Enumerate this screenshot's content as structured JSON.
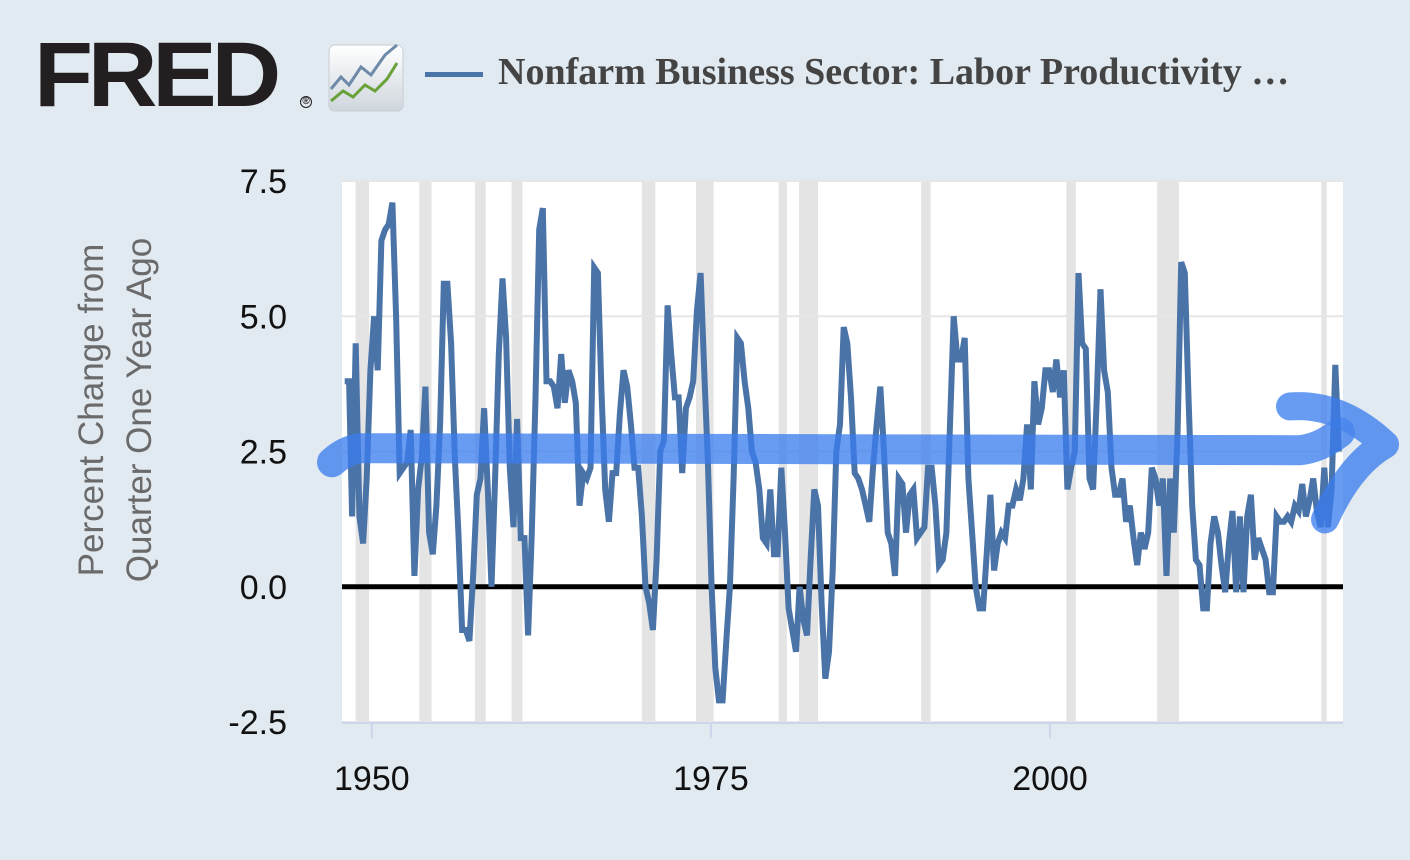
{
  "header": {
    "logo_text": "FRED",
    "logo_registered": "®",
    "logo_icon": "fred-chart-icon",
    "legend_label": "Nonfarm Business Sector: Labor Productivity …",
    "legend_color": "#4a73a8"
  },
  "colors": {
    "background": "#e1e9f1",
    "plot_background": "#ffffff",
    "series": "#4a73a8",
    "recession_band": "#e4e4e4",
    "zero_line": "#000000",
    "annotation_arrow": "#3b7ded"
  },
  "chart_data": {
    "type": "line",
    "title": "Nonfarm Business Sector: Labor Productivity …",
    "xlabel": "",
    "ylabel": "Percent Change from Quarter One Year Ago",
    "ylabel_lines": [
      "Percent Change from",
      "Quarter One Year Ago"
    ],
    "ylim": [
      -2.5,
      7.5
    ],
    "xlim": [
      1947.8,
      2021.6
    ],
    "y_ticks": [
      "7.5",
      "5.0",
      "2.5",
      "0.0",
      "-2.5"
    ],
    "y_tick_values": [
      7.5,
      5.0,
      2.5,
      0.0,
      -2.5
    ],
    "x_ticks": [
      "1950",
      "1975",
      "2000"
    ],
    "x_tick_values": [
      1950,
      1975,
      2000
    ],
    "grid": "horizontal",
    "legend_position": "top",
    "reference_line": {
      "y": 0.0,
      "color": "#000000"
    },
    "recessions": [
      [
        1948.8,
        1949.8
      ],
      [
        1953.5,
        1954.4
      ],
      [
        1957.6,
        1958.4
      ],
      [
        1960.3,
        1961.1
      ],
      [
        1969.9,
        1970.9
      ],
      [
        1973.9,
        1975.2
      ],
      [
        1980.0,
        1980.6
      ],
      [
        1981.5,
        1982.9
      ],
      [
        1990.5,
        1991.2
      ],
      [
        2001.2,
        2001.9
      ],
      [
        2007.9,
        2009.5
      ],
      [
        2020.0,
        2020.4
      ]
    ],
    "series": [
      {
        "name": "Nonfarm Business Sector: Labor Productivity (Percent Change from Quarter One Year Ago)",
        "color": "#4a73a8",
        "points": [
          [
            1948.0,
            3.8
          ],
          [
            1948.3,
            3.8
          ],
          [
            1948.5,
            1.3
          ],
          [
            1948.75,
            4.5
          ],
          [
            1949.0,
            1.3
          ],
          [
            1949.25,
            0.8
          ],
          [
            1949.5,
            2.0
          ],
          [
            1949.75,
            4.0
          ],
          [
            1950.0,
            5.0
          ],
          [
            1950.25,
            4.0
          ],
          [
            1950.5,
            6.4
          ],
          [
            1950.75,
            6.6
          ],
          [
            1951.0,
            6.7
          ],
          [
            1951.25,
            7.1
          ],
          [
            1951.5,
            5.0
          ],
          [
            1951.75,
            2.1
          ],
          [
            1952.0,
            2.2
          ],
          [
            1952.25,
            2.3
          ],
          [
            1952.5,
            2.9
          ],
          [
            1952.75,
            0.2
          ],
          [
            1953.0,
            1.8
          ],
          [
            1953.25,
            2.4
          ],
          [
            1953.5,
            3.7
          ],
          [
            1953.75,
            1.0
          ],
          [
            1954.0,
            0.6
          ],
          [
            1954.25,
            1.5
          ],
          [
            1954.5,
            3.0
          ],
          [
            1954.75,
            5.6
          ],
          [
            1955.0,
            5.6
          ],
          [
            1955.25,
            4.5
          ],
          [
            1955.5,
            2.4
          ],
          [
            1955.75,
            1.0
          ],
          [
            1956.0,
            -0.8
          ],
          [
            1956.25,
            -0.8
          ],
          [
            1956.5,
            -1.0
          ],
          [
            1956.75,
            0.2
          ],
          [
            1957.0,
            1.7
          ],
          [
            1957.25,
            2.0
          ],
          [
            1957.5,
            3.3
          ],
          [
            1957.75,
            1.8
          ],
          [
            1958.0,
            0.0
          ],
          [
            1958.25,
            2.0
          ],
          [
            1958.5,
            4.3
          ],
          [
            1958.75,
            5.7
          ],
          [
            1959.0,
            4.6
          ],
          [
            1959.25,
            2.2
          ],
          [
            1959.5,
            1.1
          ],
          [
            1959.75,
            3.1
          ],
          [
            1960.0,
            0.9
          ],
          [
            1960.25,
            0.9
          ],
          [
            1960.5,
            -0.9
          ],
          [
            1960.75,
            1.0
          ],
          [
            1961.0,
            3.5
          ],
          [
            1961.25,
            6.6
          ],
          [
            1961.5,
            7.0
          ],
          [
            1961.75,
            3.8
          ],
          [
            1962.0,
            3.8
          ],
          [
            1962.25,
            3.7
          ],
          [
            1962.5,
            3.3
          ],
          [
            1962.75,
            4.3
          ],
          [
            1963.0,
            3.4
          ],
          [
            1963.25,
            4.0
          ],
          [
            1963.5,
            3.8
          ],
          [
            1963.75,
            3.4
          ],
          [
            1964.0,
            1.5
          ],
          [
            1964.25,
            2.1
          ],
          [
            1964.5,
            2.0
          ],
          [
            1964.75,
            2.2
          ],
          [
            1965.0,
            5.9
          ],
          [
            1965.25,
            5.8
          ],
          [
            1965.5,
            3.6
          ],
          [
            1965.75,
            1.8
          ],
          [
            1966.0,
            1.2
          ],
          [
            1966.25,
            2.1
          ],
          [
            1966.5,
            2.1
          ],
          [
            1966.75,
            3.2
          ],
          [
            1967.0,
            4.0
          ],
          [
            1967.25,
            3.7
          ],
          [
            1967.5,
            3.0
          ],
          [
            1967.75,
            2.2
          ],
          [
            1968.0,
            2.2
          ],
          [
            1968.25,
            1.3
          ],
          [
            1968.5,
            0.0
          ],
          [
            1968.75,
            -0.3
          ],
          [
            1969.0,
            -0.8
          ],
          [
            1969.25,
            0.5
          ],
          [
            1969.5,
            2.5
          ],
          [
            1969.75,
            2.7
          ],
          [
            1970.0,
            5.2
          ],
          [
            1970.25,
            4.3
          ],
          [
            1970.5,
            3.5
          ],
          [
            1970.75,
            3.5
          ],
          [
            1971.0,
            2.1
          ],
          [
            1971.25,
            3.3
          ],
          [
            1971.5,
            3.5
          ],
          [
            1971.75,
            3.8
          ],
          [
            1972.0,
            5.1
          ],
          [
            1972.25,
            5.8
          ],
          [
            1972.5,
            4.0
          ],
          [
            1972.75,
            2.3
          ],
          [
            1973.0,
            0.0
          ],
          [
            1973.25,
            -1.5
          ],
          [
            1973.5,
            -2.1
          ],
          [
            1973.75,
            -2.1
          ],
          [
            1974.0,
            -1.0
          ],
          [
            1974.25,
            0.0
          ],
          [
            1974.5,
            2.0
          ],
          [
            1974.75,
            4.6
          ],
          [
            1975.0,
            4.5
          ],
          [
            1975.25,
            3.8
          ],
          [
            1975.5,
            3.3
          ],
          [
            1975.75,
            2.5
          ],
          [
            1976.0,
            2.3
          ],
          [
            1976.25,
            1.8
          ],
          [
            1976.5,
            0.9
          ],
          [
            1976.75,
            0.8
          ],
          [
            1977.0,
            1.8
          ],
          [
            1977.25,
            0.6
          ],
          [
            1977.5,
            0.6
          ],
          [
            1977.75,
            2.2
          ],
          [
            1978.0,
            1.0
          ],
          [
            1978.25,
            -0.4
          ],
          [
            1978.5,
            -0.8
          ],
          [
            1978.75,
            -1.2
          ],
          [
            1979.0,
            0.0
          ],
          [
            1979.25,
            -0.6
          ],
          [
            1979.5,
            -0.9
          ],
          [
            1979.75,
            0.5
          ],
          [
            1980.0,
            1.8
          ],
          [
            1980.25,
            1.5
          ],
          [
            1980.5,
            -0.3
          ],
          [
            1980.75,
            -1.7
          ],
          [
            1981.0,
            -1.2
          ],
          [
            1981.25,
            0.3
          ],
          [
            1981.5,
            2.5
          ],
          [
            1981.75,
            3.0
          ],
          [
            1982.0,
            4.8
          ],
          [
            1982.25,
            4.5
          ],
          [
            1982.5,
            3.5
          ],
          [
            1982.75,
            2.1
          ],
          [
            1983.0,
            2.0
          ],
          [
            1983.25,
            1.8
          ],
          [
            1983.5,
            1.5
          ],
          [
            1983.75,
            1.2
          ],
          [
            1984.0,
            2.2
          ],
          [
            1984.25,
            3.0
          ],
          [
            1984.5,
            3.7
          ],
          [
            1984.75,
            2.5
          ],
          [
            1985.0,
            1.0
          ],
          [
            1985.25,
            0.8
          ],
          [
            1985.5,
            0.2
          ],
          [
            1985.75,
            2.0
          ],
          [
            1986.0,
            1.9
          ],
          [
            1986.25,
            1.0
          ],
          [
            1986.5,
            1.7
          ],
          [
            1986.75,
            1.8
          ],
          [
            1987.0,
            0.9
          ],
          [
            1987.25,
            1.0
          ],
          [
            1987.5,
            1.1
          ],
          [
            1987.75,
            2.2
          ],
          [
            1988.0,
            2.2
          ],
          [
            1988.25,
            1.5
          ],
          [
            1988.5,
            0.4
          ],
          [
            1988.75,
            0.5
          ],
          [
            1989.0,
            1.0
          ],
          [
            1989.25,
            3.0
          ],
          [
            1989.5,
            5.0
          ],
          [
            1989.75,
            4.2
          ],
          [
            1990.0,
            4.2
          ],
          [
            1990.25,
            4.6
          ],
          [
            1990.5,
            2.0
          ],
          [
            1990.75,
            1.0
          ],
          [
            1991.0,
            0.0
          ],
          [
            1991.25,
            -0.4
          ],
          [
            1991.5,
            -0.4
          ],
          [
            1991.75,
            0.6
          ],
          [
            1992.0,
            1.7
          ],
          [
            1992.25,
            0.3
          ],
          [
            1992.5,
            0.8
          ],
          [
            1992.75,
            1.0
          ],
          [
            1993.0,
            0.9
          ],
          [
            1993.25,
            1.5
          ],
          [
            1993.5,
            1.5
          ],
          [
            1993.75,
            1.8
          ],
          [
            1994.0,
            1.6
          ],
          [
            1994.25,
            2.0
          ],
          [
            1994.5,
            3.0
          ],
          [
            1994.75,
            1.8
          ],
          [
            1995.0,
            3.8
          ],
          [
            1995.25,
            3.0
          ],
          [
            1995.5,
            3.3
          ],
          [
            1995.75,
            4.0
          ],
          [
            1996.0,
            4.0
          ],
          [
            1996.25,
            3.6
          ],
          [
            1996.5,
            4.2
          ],
          [
            1996.75,
            3.5
          ],
          [
            1997.0,
            4.0
          ],
          [
            1997.25,
            1.8
          ],
          [
            1997.5,
            2.2
          ],
          [
            1997.75,
            2.5
          ],
          [
            1998.0,
            5.8
          ],
          [
            1998.25,
            4.5
          ],
          [
            1998.5,
            4.4
          ],
          [
            1998.75,
            2.0
          ],
          [
            1999.0,
            1.8
          ],
          [
            1999.25,
            3.5
          ],
          [
            1999.5,
            5.5
          ],
          [
            1999.75,
            4.0
          ],
          [
            2000.0,
            3.6
          ],
          [
            2000.25,
            2.2
          ],
          [
            2000.5,
            1.7
          ],
          [
            2000.75,
            1.7
          ],
          [
            2001.0,
            2.0
          ],
          [
            2001.25,
            1.2
          ],
          [
            2001.5,
            1.5
          ],
          [
            2001.75,
            0.9
          ],
          [
            2002.0,
            0.4
          ],
          [
            2002.25,
            1.0
          ],
          [
            2002.5,
            0.7
          ],
          [
            2002.75,
            1.0
          ],
          [
            2003.0,
            2.2
          ],
          [
            2003.25,
            2.0
          ],
          [
            2003.5,
            1.5
          ],
          [
            2003.75,
            2.0
          ],
          [
            2004.0,
            0.2
          ],
          [
            2004.25,
            2.0
          ],
          [
            2004.5,
            1.0
          ],
          [
            2004.75,
            2.8
          ],
          [
            2005.0,
            6.0
          ],
          [
            2005.25,
            5.8
          ],
          [
            2005.5,
            3.5
          ],
          [
            2005.75,
            1.5
          ],
          [
            2006.0,
            0.5
          ],
          [
            2006.25,
            0.4
          ],
          [
            2006.5,
            -0.4
          ],
          [
            2006.75,
            -0.4
          ],
          [
            2007.0,
            0.8
          ],
          [
            2007.25,
            1.3
          ],
          [
            2007.5,
            1.0
          ],
          [
            2007.75,
            0.4
          ],
          [
            2008.0,
            -0.1
          ],
          [
            2008.25,
            0.8
          ],
          [
            2008.5,
            1.4
          ],
          [
            2008.75,
            -0.1
          ],
          [
            2009.0,
            1.3
          ],
          [
            2009.25,
            -0.1
          ],
          [
            2009.5,
            1.3
          ],
          [
            2009.75,
            1.7
          ],
          [
            2010.0,
            0.5
          ],
          [
            2010.25,
            0.9
          ],
          [
            2010.5,
            0.7
          ],
          [
            2010.75,
            0.5
          ],
          [
            2011.0,
            -0.1
          ],
          [
            2011.25,
            -0.1
          ],
          [
            2011.5,
            1.3
          ],
          [
            2011.75,
            1.2
          ],
          [
            2012.0,
            1.2
          ],
          [
            2012.25,
            1.3
          ],
          [
            2012.5,
            1.2
          ],
          [
            2012.75,
            1.5
          ],
          [
            2013.0,
            1.4
          ],
          [
            2013.25,
            1.9
          ],
          [
            2013.5,
            1.3
          ],
          [
            2013.75,
            1.6
          ],
          [
            2014.0,
            2.0
          ],
          [
            2014.25,
            1.4
          ],
          [
            2014.5,
            1.1
          ],
          [
            2014.75,
            2.2
          ],
          [
            2015.0,
            1.1
          ],
          [
            2015.25,
            1.8
          ],
          [
            2015.5,
            4.1
          ],
          [
            2015.75,
            2.5
          ]
        ]
      }
    ],
    "annotations": [
      {
        "type": "hand-drawn-arrow",
        "description": "Thick light-blue hand-drawn horizontal arrow at ~2.5% trending slightly up to ~3.0% at right edge, pointing right",
        "color": "#3b7ded",
        "y_start": 2.45,
        "y_end": 3.0
      }
    ]
  }
}
